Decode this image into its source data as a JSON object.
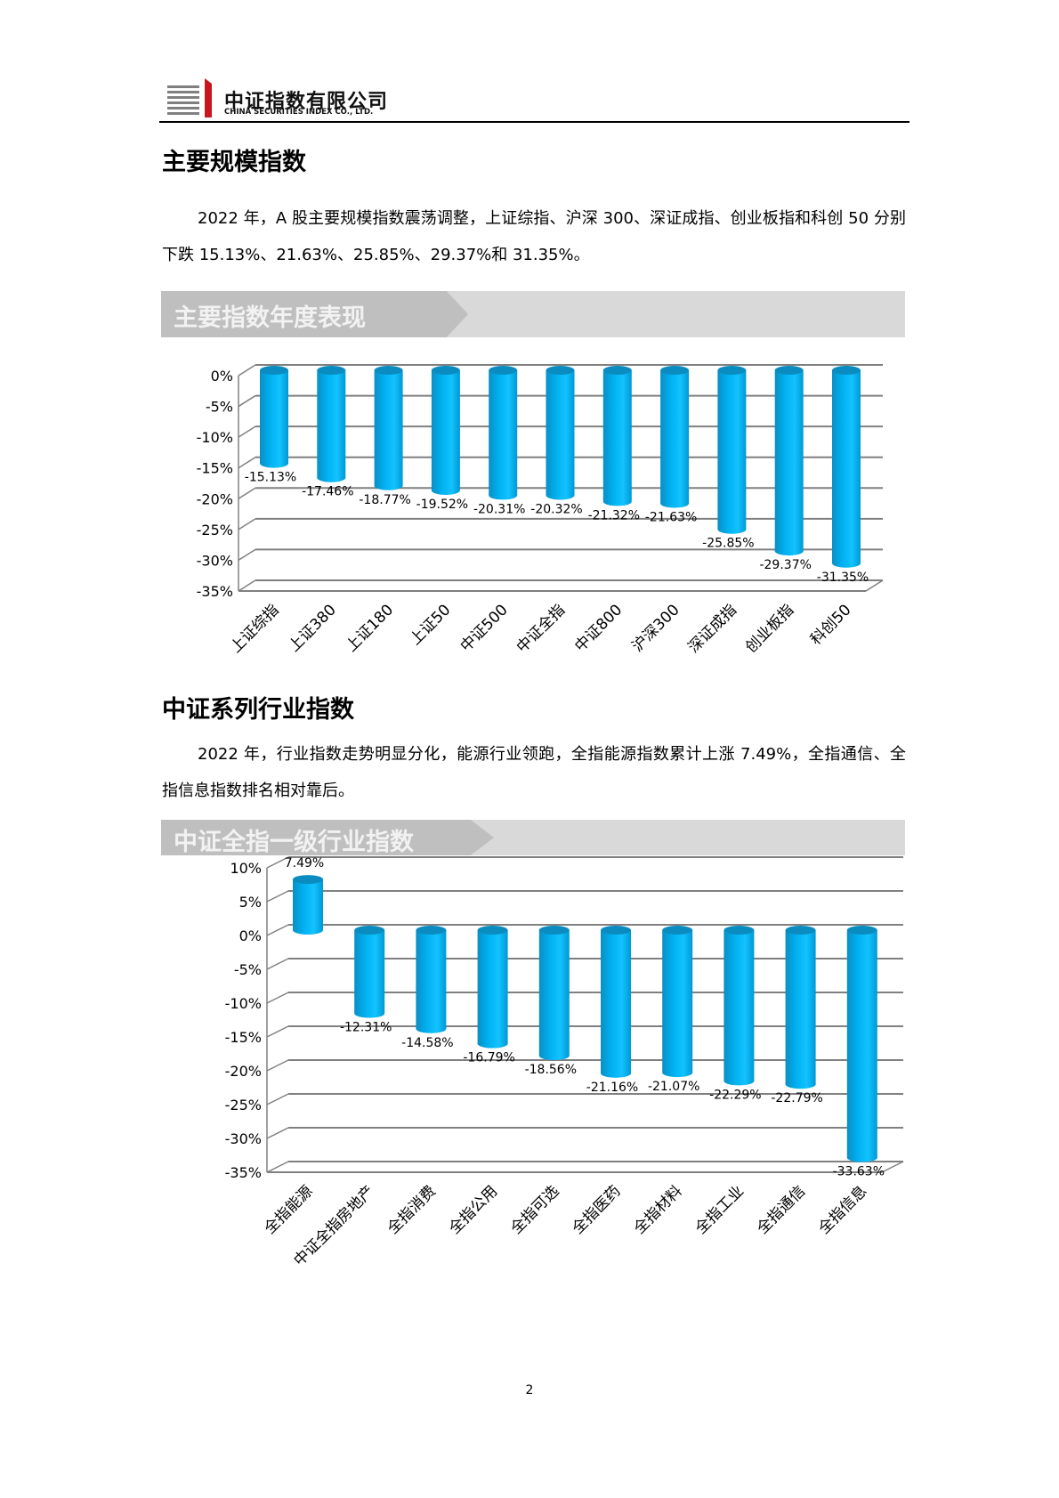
{
  "header": {
    "company_cn": "中证指数有限公司",
    "company_en": "CHINA SECURITIES INDEX CO., LTD.",
    "logo_colors": {
      "red": "#c8161d",
      "gray": "#7f7f7f"
    }
  },
  "section1": {
    "heading": "主要规模指数",
    "paragraph": "2022 年，A 股主要规模指数震荡调整，上证综指、沪深 300、深证成指、创业板指和科创 50 分别下跌 15.13%、21.63%、25.85%、29.37%和 31.35%。",
    "banner": "主要指数年度表现"
  },
  "section2": {
    "heading": "中证系列行业指数",
    "paragraph": "2022 年，行业指数走势明显分化，能源行业领跑，全指能源指数累计上涨 7.49%，全指通信、全指信息指数排名相对靠后。",
    "banner": "中证全指一级行业指数"
  },
  "page_number": "2",
  "chart_data": [
    {
      "type": "bar",
      "style": "3d-cylinder",
      "color": "#00b0f0",
      "grid": true,
      "categories": [
        "上证综指",
        "上证380",
        "上证180",
        "上证50",
        "中证500",
        "中证全指",
        "中证800",
        "沪深300",
        "深证成指",
        "创业板指",
        "科创50"
      ],
      "values": [
        -15.13,
        -17.46,
        -18.77,
        -19.52,
        -20.31,
        -20.32,
        -21.32,
        -21.63,
        -25.85,
        -29.37,
        -31.35
      ],
      "data_labels": [
        "-15.13%",
        "-17.46%",
        "-18.77%",
        "-19.52%",
        "-20.31%",
        "-20.32%",
        "-21.32%",
        "-21.63%",
        "-25.85%",
        "-29.37%",
        "-31.35%"
      ],
      "ylim": [
        -35,
        0
      ],
      "yticks": [
        "0%",
        "-5%",
        "-10%",
        "-15%",
        "-20%",
        "-25%",
        "-30%",
        "-35%"
      ]
    },
    {
      "type": "bar",
      "style": "3d-cylinder",
      "color": "#00b0f0",
      "grid": true,
      "categories": [
        "全指能源",
        "中证全指房地产",
        "全指消费",
        "全指公用",
        "全指可选",
        "全指医药",
        "全指材料",
        "全指工业",
        "全指通信",
        "全指信息"
      ],
      "values": [
        7.49,
        -12.31,
        -14.58,
        -16.79,
        -18.56,
        -21.16,
        -21.07,
        -22.29,
        -22.79,
        -33.63
      ],
      "data_labels": [
        "7.49%",
        "-12.31%",
        "-14.58%",
        "-16.79%",
        "-18.56%",
        "-21.16%",
        "-21.07%",
        "-22.29%",
        "-22.79%",
        "-33.63%"
      ],
      "ylim": [
        -35,
        10
      ],
      "yticks": [
        "10%",
        "5%",
        "0%",
        "-5%",
        "-10%",
        "-15%",
        "-20%",
        "-25%",
        "-30%",
        "-35%"
      ]
    }
  ]
}
